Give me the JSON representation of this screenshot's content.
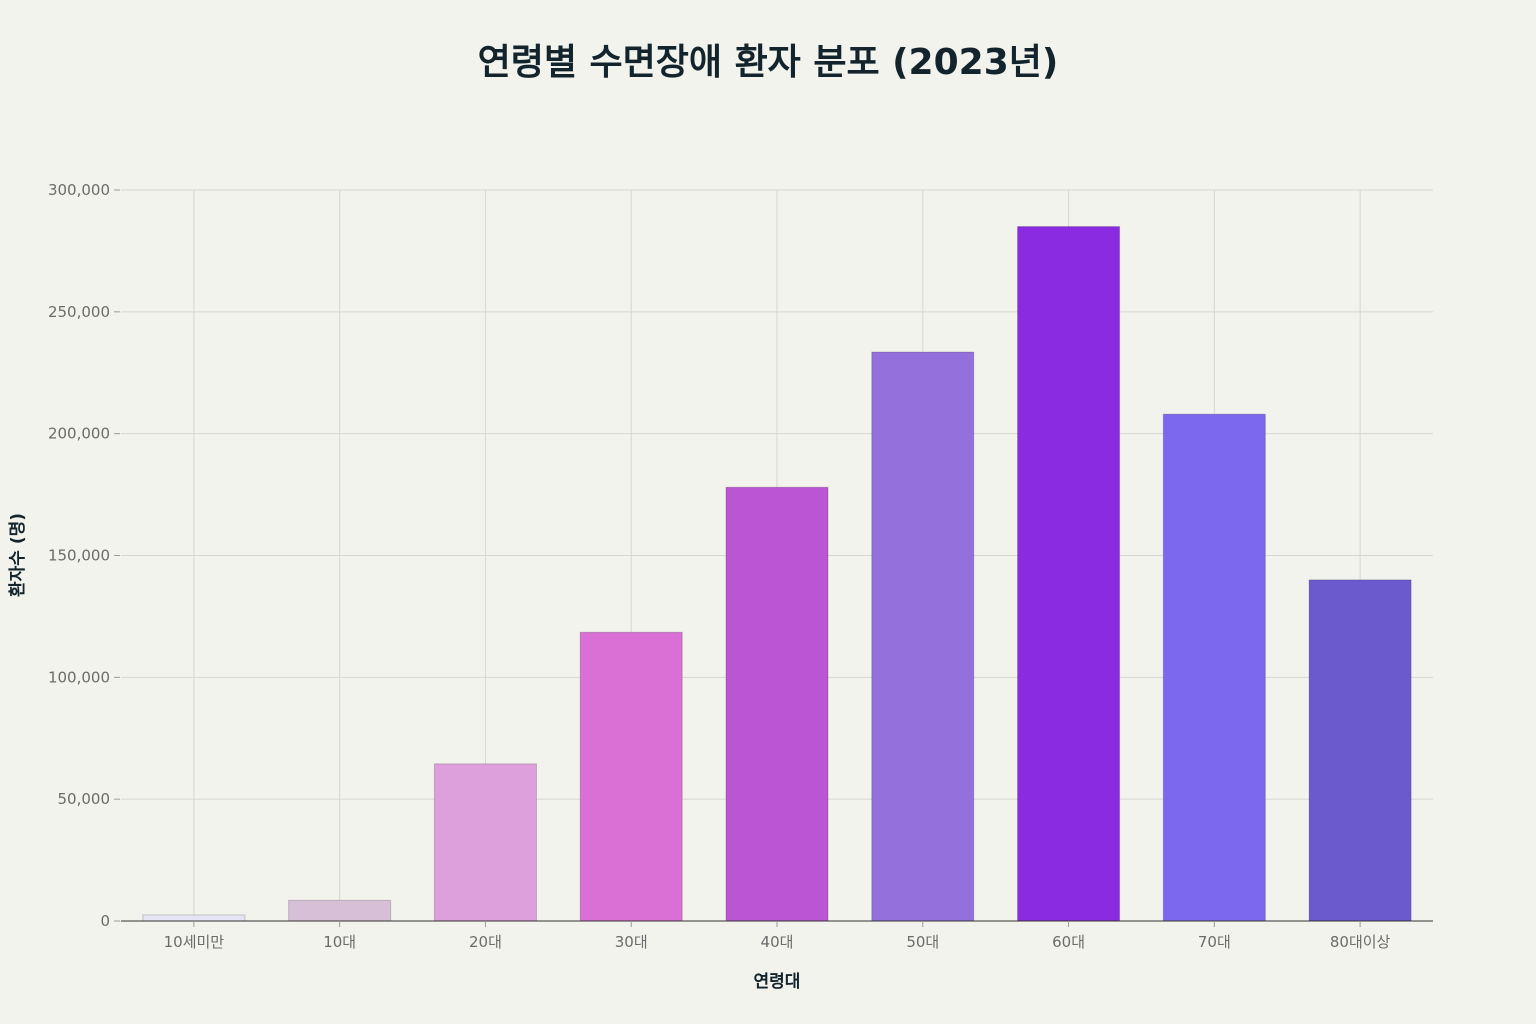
{
  "chart_data": {
    "type": "bar",
    "title": "연령별 수면장애 환자 분포 (2023년)",
    "xlabel": "연령대",
    "ylabel": "환자수 (명)",
    "categories": [
      "10세미만",
      "10대",
      "20대",
      "30대",
      "40대",
      "50대",
      "60대",
      "70대",
      "80대이상"
    ],
    "values": [
      2500,
      8500,
      64500,
      118500,
      178000,
      233500,
      285000,
      208000,
      140000
    ],
    "colors": [
      "#e4e4f5",
      "#d8bfd8",
      "#dda0dd",
      "#da70d6",
      "#ba55d3",
      "#9370db",
      "#8a2be2",
      "#7b68ee",
      "#6a5acd"
    ],
    "ylim": [
      0,
      300000
    ],
    "yticks": [
      0,
      50000,
      100000,
      150000,
      200000,
      250000,
      300000
    ],
    "ytick_labels": [
      "0",
      "50,000",
      "100,000",
      "150,000",
      "200,000",
      "250,000",
      "300,000"
    ],
    "grid": true,
    "legend": "none"
  }
}
